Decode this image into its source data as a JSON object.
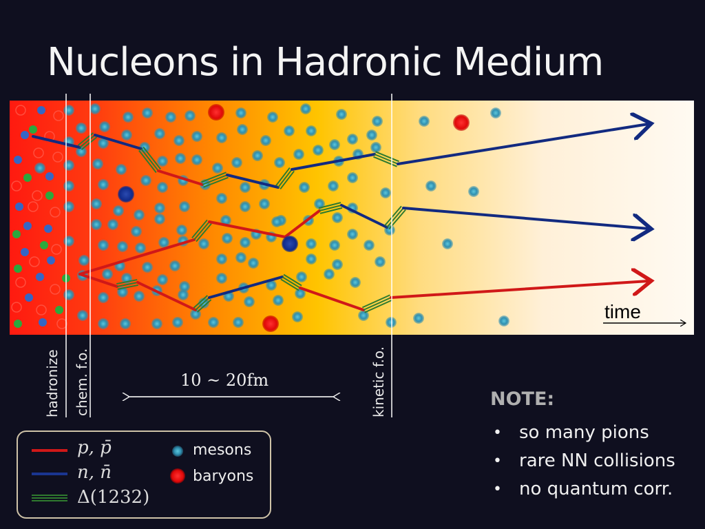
{
  "slide": {
    "title": "Nucleons in Hadronic Medium"
  },
  "diagram": {
    "stage_labels": {
      "hadronize": "hadronize",
      "chem_fo": "chem. f.o.",
      "kinetic_fo": "kinetic f.o."
    },
    "time_label": "time",
    "range_label": "10 ~ 20fm",
    "colors": {
      "proton": "#d01818",
      "neutron": "#122a80",
      "delta": "#2f7a2f",
      "meson": "#3aa0b8",
      "baryon": "#e01010",
      "medium_hot": "#ff2a10",
      "medium_mid": "#ffc000",
      "medium_cool": "#fff8f0"
    }
  },
  "legend": {
    "items": [
      {
        "symbol": "p, p̄",
        "type": "proton-line"
      },
      {
        "symbol": "n, n̄",
        "type": "neutron-line"
      },
      {
        "symbol": "Δ(1232)",
        "type": "delta-line"
      },
      {
        "label": "mesons",
        "type": "meson-dot"
      },
      {
        "label": "baryons",
        "type": "baryon-dot"
      }
    ]
  },
  "note": {
    "heading": "NOTE:",
    "bullets": [
      "so many pions",
      "rare NN collisions",
      "no quantum corr."
    ]
  }
}
